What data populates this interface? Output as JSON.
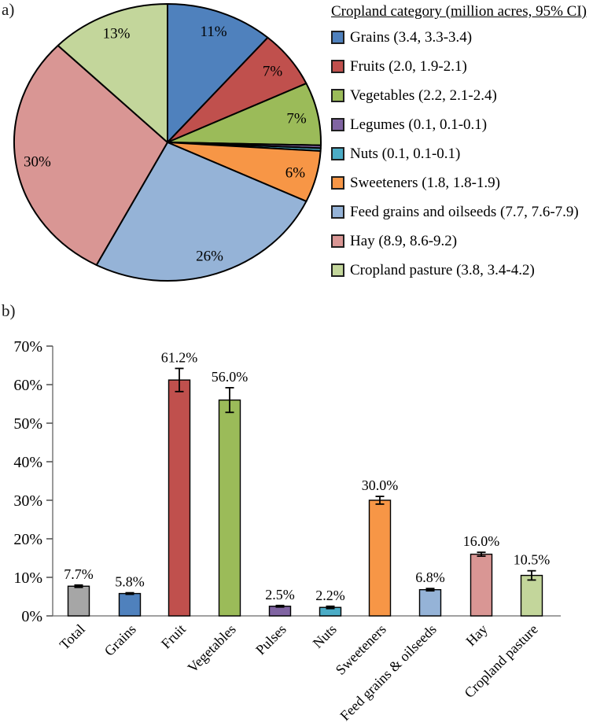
{
  "figure": {
    "panel_a_label": "a)",
    "panel_b_label": "b)"
  },
  "chart_data": [
    {
      "panel": "a",
      "type": "pie",
      "legend_title": "Cropland category (million acres, 95% CI)",
      "legend_position": "right",
      "start_angle_deg": 0,
      "direction": "clockwise",
      "slices": [
        {
          "name": "Grains",
          "acres": 3.4,
          "ci": "3.3-3.4",
          "display_pct": "11%",
          "legend_label": "Grains (3.4, 3.3-3.4)",
          "color": "#4F81BD"
        },
        {
          "name": "Fruits",
          "acres": 2.0,
          "ci": "1.9-2.1",
          "display_pct": "7%",
          "legend_label": "Fruits (2.0, 1.9-2.1)",
          "color": "#C0504D"
        },
        {
          "name": "Vegetables",
          "acres": 2.2,
          "ci": "2.1-2.4",
          "display_pct": "7%",
          "legend_label": "Vegetables (2.2, 2.1-2.4)",
          "color": "#9BBB59"
        },
        {
          "name": "Legumes",
          "acres": 0.1,
          "ci": "0.1-0.1",
          "display_pct": "",
          "legend_label": "Legumes (0.1, 0.1-0.1)",
          "color": "#8064A2"
        },
        {
          "name": "Nuts",
          "acres": 0.1,
          "ci": "0.1-0.1",
          "display_pct": "",
          "legend_label": "Nuts (0.1, 0.1-0.1)",
          "color": "#4BACC6"
        },
        {
          "name": "Sweeteners",
          "acres": 1.8,
          "ci": "1.8-1.9",
          "display_pct": "6%",
          "legend_label": "Sweeteners (1.8, 1.8-1.9)",
          "color": "#F79646"
        },
        {
          "name": "Feed grains and oilseeds",
          "acres": 7.7,
          "ci": "7.6-7.9",
          "display_pct": "26%",
          "legend_label": "Feed grains and oilseeds (7.7, 7.6-7.9)",
          "color": "#95B3D7"
        },
        {
          "name": "Hay",
          "acres": 8.9,
          "ci": "8.6-9.2",
          "display_pct": "30%",
          "legend_label": "Hay (8.9, 8.6-9.2)",
          "color": "#D99694"
        },
        {
          "name": "Cropland pasture",
          "acres": 3.8,
          "ci": "3.4-4.2",
          "display_pct": "13%",
          "legend_label": "Cropland pasture (3.8, 3.4-4.2)",
          "color": "#C3D69B"
        }
      ]
    },
    {
      "panel": "b",
      "type": "bar",
      "categories": [
        "Total",
        "Grains",
        "Fruit",
        "Vegetables",
        "Pulses",
        "Nuts",
        "Sweeteners",
        "Feed grains & oilseeds",
        "Hay",
        "Cropland pasture"
      ],
      "values": [
        7.7,
        5.8,
        61.2,
        56.0,
        2.5,
        2.2,
        30.0,
        6.8,
        16.0,
        10.5
      ],
      "value_labels": [
        "7.7%",
        "5.8%",
        "61.2%",
        "56.0%",
        "2.5%",
        "2.2%",
        "30.0%",
        "6.8%",
        "16.0%",
        "10.5%"
      ],
      "ci_half": [
        0.3,
        0.2,
        3.0,
        3.2,
        0.2,
        0.3,
        1.0,
        0.3,
        0.5,
        1.2
      ],
      "colors": [
        "#A6A6A6",
        "#4F81BD",
        "#C0504D",
        "#9BBB59",
        "#8064A2",
        "#4BACC6",
        "#F79646",
        "#95B3D7",
        "#D99694",
        "#C3D69B"
      ],
      "error_bars": true,
      "grid": false,
      "xlabel": "",
      "ylabel": "",
      "ylim": [
        0,
        70
      ],
      "ytick_values": [
        0,
        10,
        20,
        30,
        40,
        50,
        60,
        70
      ],
      "ytick_labels": [
        "0%",
        "10%",
        "20%",
        "30%",
        "40%",
        "50%",
        "60%",
        "70%"
      ]
    }
  ]
}
